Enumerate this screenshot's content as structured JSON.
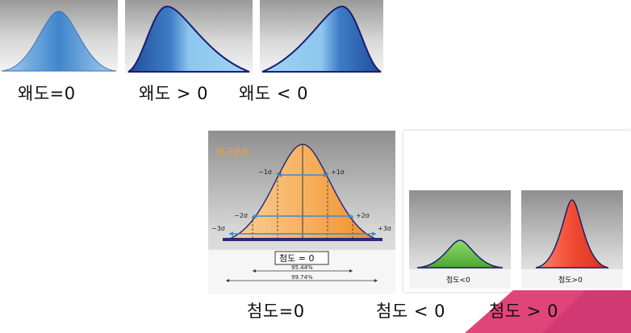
{
  "skewness": {
    "panels": [
      {
        "caption": "왜도=0"
      },
      {
        "caption": "왜도 > 0"
      },
      {
        "caption": "왜도 < 0"
      }
    ]
  },
  "kurtosis_normal": {
    "title": "정규분포",
    "sigma_labels": {
      "m1": "−1σ",
      "p1": "+1σ",
      "m2": "−2σ",
      "p2": "+2σ",
      "m3": "−3σ",
      "p3": "+3σ"
    },
    "box_label": "첨도 = 0",
    "pct_2sigma": "95.44%",
    "pct_3sigma": "99.74%",
    "caption": "첨도=0"
  },
  "kurtosis_neg": {
    "inner_label": "첨도<0",
    "caption": "첨도 < 0"
  },
  "kurtosis_pos": {
    "inner_label": "첨도>0",
    "caption": "첨도 > 0"
  },
  "colors": {
    "blue_curve": "#4f90d0",
    "navy_outline": "#1c1e6e",
    "orange_fill": "#f39a3a",
    "green_fill": "#6cc04a",
    "red_fill": "#f0503a",
    "pink_accent": "#e0457a"
  }
}
